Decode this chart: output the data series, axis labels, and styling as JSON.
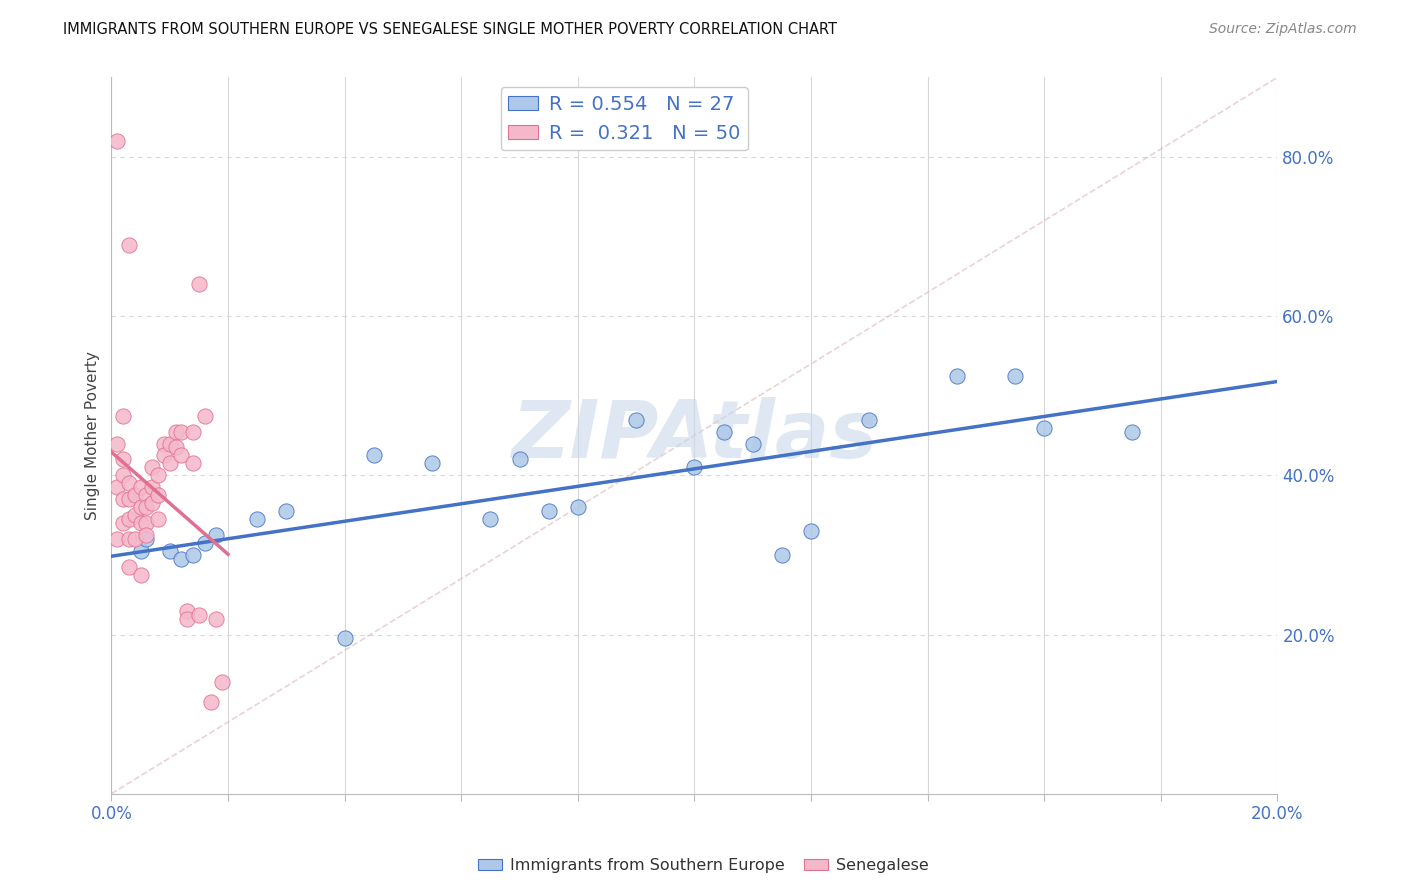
{
  "title": "IMMIGRANTS FROM SOUTHERN EUROPE VS SENEGALESE SINGLE MOTHER POVERTY CORRELATION CHART",
  "source": "Source: ZipAtlas.com",
  "ylabel": "Single Mother Poverty",
  "xlim": [
    0.0,
    0.2
  ],
  "ylim": [
    0.0,
    0.9
  ],
  "xticks": [
    0.0,
    0.02,
    0.04,
    0.06,
    0.08,
    0.1,
    0.12,
    0.14,
    0.16,
    0.18,
    0.2
  ],
  "yticks_right": [
    0.2,
    0.4,
    0.6,
    0.8
  ],
  "yticklabels_right": [
    "20.0%",
    "40.0%",
    "60.0%",
    "80.0%"
  ],
  "R_blue": 0.554,
  "N_blue": 27,
  "R_pink": 0.321,
  "N_pink": 50,
  "blue_scatter_x": [
    0.005,
    0.006,
    0.01,
    0.012,
    0.014,
    0.016,
    0.018,
    0.025,
    0.03,
    0.04,
    0.045,
    0.055,
    0.065,
    0.07,
    0.075,
    0.08,
    0.09,
    0.1,
    0.105,
    0.11,
    0.115,
    0.12,
    0.13,
    0.145,
    0.155,
    0.16,
    0.175
  ],
  "blue_scatter_y": [
    0.305,
    0.32,
    0.305,
    0.295,
    0.3,
    0.315,
    0.325,
    0.345,
    0.355,
    0.195,
    0.425,
    0.415,
    0.345,
    0.42,
    0.355,
    0.36,
    0.47,
    0.41,
    0.455,
    0.44,
    0.3,
    0.33,
    0.47,
    0.525,
    0.525,
    0.46,
    0.455
  ],
  "pink_scatter_x": [
    0.001,
    0.001,
    0.001,
    0.001,
    0.002,
    0.002,
    0.002,
    0.002,
    0.003,
    0.003,
    0.003,
    0.003,
    0.003,
    0.004,
    0.004,
    0.004,
    0.005,
    0.005,
    0.005,
    0.005,
    0.006,
    0.006,
    0.006,
    0.006,
    0.007,
    0.007,
    0.007,
    0.008,
    0.008,
    0.008,
    0.009,
    0.009,
    0.01,
    0.01,
    0.011,
    0.011,
    0.012,
    0.012,
    0.013,
    0.013,
    0.014,
    0.014,
    0.015,
    0.015,
    0.016,
    0.017,
    0.018,
    0.019,
    0.003,
    0.002
  ],
  "pink_scatter_y": [
    0.82,
    0.44,
    0.385,
    0.32,
    0.42,
    0.4,
    0.37,
    0.34,
    0.39,
    0.37,
    0.345,
    0.32,
    0.285,
    0.375,
    0.35,
    0.32,
    0.385,
    0.36,
    0.34,
    0.275,
    0.375,
    0.36,
    0.34,
    0.325,
    0.41,
    0.385,
    0.365,
    0.4,
    0.375,
    0.345,
    0.44,
    0.425,
    0.44,
    0.415,
    0.455,
    0.435,
    0.455,
    0.425,
    0.23,
    0.22,
    0.455,
    0.415,
    0.64,
    0.225,
    0.475,
    0.115,
    0.22,
    0.14,
    0.69,
    0.475
  ],
  "blue_color": "#adc8e8",
  "pink_color": "#f5b8cb",
  "blue_line_color": "#4472c4",
  "pink_line_color": "#e07090",
  "ref_line_color": "#e0c0c8",
  "watermark": "ZIPAtlas",
  "watermark_color": "#c8d8ea",
  "background_color": "#ffffff",
  "grid_color": "#d8d8d8"
}
